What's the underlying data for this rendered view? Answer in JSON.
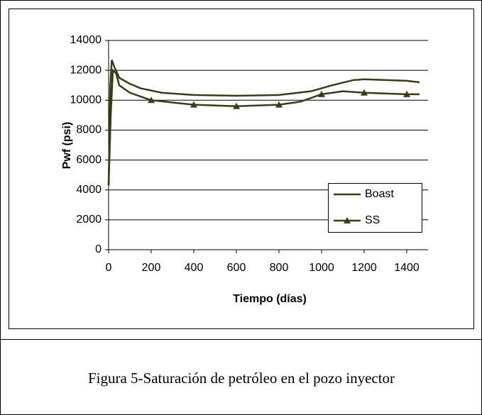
{
  "chart_data": {
    "type": "line",
    "caption": "Figura 5-Saturación de petróleo en el pozo inyector",
    "xlabel": "Tiempo (días)",
    "ylabel": "Pwf (psi)",
    "xlim": [
      0,
      1500
    ],
    "ylim": [
      0,
      14000
    ],
    "xticks": [
      0,
      200,
      400,
      600,
      800,
      1000,
      1200,
      1400
    ],
    "yticks": [
      0,
      2000,
      4000,
      6000,
      8000,
      10000,
      12000,
      14000
    ],
    "grid": true,
    "legend": "lower right",
    "series": [
      {
        "name": "Boast",
        "color": "#3b3b14",
        "x": [
          0,
          8,
          15,
          25,
          50,
          100,
          150,
          250,
          400,
          600,
          800,
          950,
          1050,
          1150,
          1200,
          1400,
          1460
        ],
        "values": [
          4300,
          11000,
          12700,
          12300,
          11500,
          11100,
          10800,
          10500,
          10350,
          10300,
          10350,
          10600,
          11000,
          11350,
          11400,
          11300,
          11200
        ]
      },
      {
        "name": "SS",
        "color": "#3b3b14",
        "x": [
          0,
          10,
          20,
          35,
          50,
          100,
          200,
          400,
          600,
          800,
          900,
          1000,
          1100,
          1200,
          1400,
          1460
        ],
        "values": [
          4300,
          9000,
          12000,
          11800,
          11000,
          10500,
          10000,
          9700,
          9600,
          9700,
          9900,
          10400,
          10600,
          10500,
          10400,
          10400
        ]
      }
    ]
  }
}
